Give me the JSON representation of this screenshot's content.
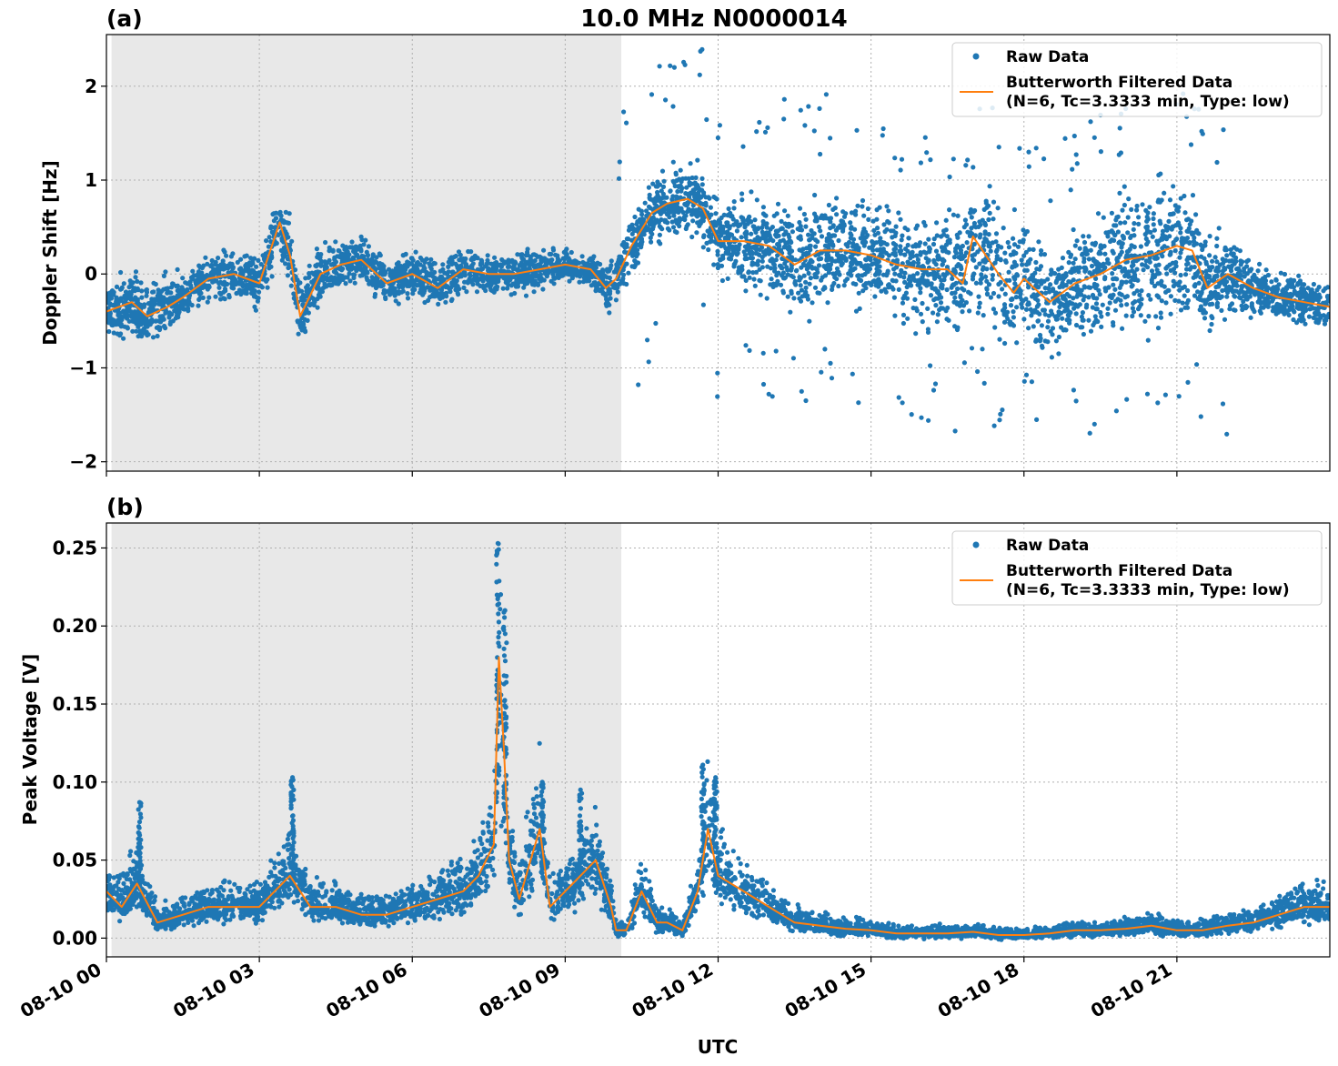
{
  "figure": {
    "title": "10.0 MHz N0000014",
    "xlabel": "UTC"
  },
  "colors": {
    "raw": "#1f77b4",
    "filtered": "#ff7f0e",
    "shade": "#e8e8e8",
    "grid": "#b0b0b0"
  },
  "legend": {
    "raw_label": "Raw Data",
    "filtered_label_line1": "Butterworth Filtered Data",
    "filtered_label_line2": "(N=6, Tc=3.3333 min, Type: low)"
  },
  "chart_data": [
    {
      "panel": "(a)",
      "type": "scatter",
      "ylabel": "Doppler Shift [Hz]",
      "xlim_hours": [
        0,
        24
      ],
      "ylim": [
        -2.1,
        2.55
      ],
      "yticks": [
        2,
        1,
        0,
        -1,
        -2
      ],
      "ytick_labels": [
        "2",
        "1",
        "0",
        "−1",
        "−2"
      ],
      "xtick_hours": [
        0,
        3,
        6,
        9,
        12,
        15,
        18,
        21
      ],
      "xtick_labels": [
        "08-10 00",
        "08-10 03",
        "08-10 06",
        "08-10 09",
        "08-10 12",
        "08-10 15",
        "08-10 18",
        "08-10 21"
      ],
      "shaded_interval_hours": [
        0.1,
        10.1
      ],
      "grid": true,
      "legend_position": "top-right",
      "series": [
        {
          "name": "Butterworth Filtered Data",
          "x": [
            0,
            0.5,
            0.8,
            1.2,
            1.5,
            2,
            2.5,
            3,
            3.4,
            3.6,
            3.8,
            4.2,
            4.6,
            5,
            5.5,
            6,
            6.5,
            7,
            7.5,
            8,
            8.5,
            9,
            9.5,
            9.8,
            10,
            10.3,
            10.7,
            11,
            11.4,
            11.7,
            12,
            12.5,
            13,
            13.5,
            14,
            14.5,
            15,
            15.5,
            16,
            16.5,
            16.8,
            17,
            17.5,
            17.8,
            18,
            18.5,
            19,
            19.5,
            20,
            20.5,
            21,
            21.3,
            21.6,
            22,
            22.5,
            23,
            23.5,
            24
          ],
          "y": [
            -0.4,
            -0.3,
            -0.45,
            -0.35,
            -0.25,
            -0.05,
            0.0,
            -0.1,
            0.55,
            0.2,
            -0.45,
            0.0,
            0.1,
            0.15,
            -0.1,
            0.0,
            -0.15,
            0.05,
            0.0,
            0.0,
            0.05,
            0.1,
            0.05,
            -0.15,
            -0.05,
            0.3,
            0.65,
            0.75,
            0.8,
            0.7,
            0.35,
            0.35,
            0.3,
            0.1,
            0.25,
            0.25,
            0.2,
            0.1,
            0.05,
            0.05,
            -0.1,
            0.4,
            0.0,
            -0.2,
            -0.05,
            -0.3,
            -0.1,
            0.0,
            0.15,
            0.2,
            0.3,
            0.25,
            -0.15,
            0.0,
            -0.15,
            -0.25,
            -0.3,
            -0.35
          ]
        },
        {
          "name": "Raw Data",
          "envelope_x": [
            0,
            0.5,
            0.8,
            1.2,
            1.5,
            2,
            2.5,
            3,
            3.4,
            3.6,
            3.8,
            4.2,
            4.6,
            5,
            5.5,
            6,
            6.5,
            7,
            7.5,
            8,
            8.5,
            9,
            9.5,
            9.8,
            10,
            10.3,
            10.7,
            11,
            11.4,
            11.7,
            12,
            12.5,
            13,
            13.5,
            14,
            14.5,
            15,
            15.5,
            16,
            16.5,
            16.8,
            17,
            17.5,
            17.8,
            18,
            18.5,
            19,
            19.5,
            20,
            20.5,
            21,
            21.3,
            21.6,
            22,
            22.5,
            23,
            23.5,
            24
          ],
          "spread": [
            0.35,
            0.4,
            0.45,
            0.4,
            0.3,
            0.3,
            0.3,
            0.35,
            0.45,
            0.4,
            0.45,
            0.35,
            0.35,
            0.3,
            0.3,
            0.3,
            0.3,
            0.3,
            0.25,
            0.25,
            0.25,
            0.2,
            0.2,
            0.3,
            0.3,
            0.35,
            0.4,
            0.45,
            0.45,
            0.45,
            0.45,
            0.55,
            0.6,
            0.65,
            0.7,
            0.65,
            0.65,
            0.7,
            0.75,
            0.85,
            0.9,
            0.9,
            0.8,
            0.9,
            0.8,
            0.7,
            0.7,
            0.8,
            0.9,
            0.95,
            0.9,
            0.75,
            0.6,
            0.55,
            0.4,
            0.3,
            0.3,
            0.3
          ]
        }
      ]
    },
    {
      "panel": "(b)",
      "type": "scatter",
      "ylabel": "Peak Voltage [V]",
      "xlim_hours": [
        0,
        24
      ],
      "ylim": [
        -0.012,
        0.266
      ],
      "yticks": [
        0.0,
        0.05,
        0.1,
        0.15,
        0.2,
        0.25
      ],
      "ytick_labels": [
        "0.00",
        "0.05",
        "0.10",
        "0.15",
        "0.20",
        "0.25"
      ],
      "xtick_hours": [
        0,
        3,
        6,
        9,
        12,
        15,
        18,
        21
      ],
      "xtick_labels": [
        "08-10 00",
        "08-10 03",
        "08-10 06",
        "08-10 09",
        "08-10 12",
        "08-10 15",
        "08-10 18",
        "08-10 21"
      ],
      "shaded_interval_hours": [
        0.1,
        10.1
      ],
      "grid": true,
      "legend_position": "top-right",
      "series": [
        {
          "name": "Butterworth Filtered Data",
          "x": [
            0,
            0.3,
            0.6,
            1,
            1.5,
            2,
            2.5,
            3,
            3.6,
            4,
            4.5,
            5,
            5.5,
            6,
            6.5,
            7,
            7.3,
            7.6,
            7.7,
            7.8,
            7.9,
            8.1,
            8.5,
            8.7,
            9,
            9.3,
            9.6,
            9.9,
            10,
            10.2,
            10.5,
            10.8,
            11,
            11.3,
            11.6,
            11.8,
            12,
            12.5,
            13,
            13.5,
            14,
            14.5,
            15,
            15.5,
            16,
            16.5,
            17,
            17.5,
            18,
            18.5,
            19,
            19.5,
            20,
            20.5,
            21,
            21.5,
            22,
            22.5,
            23,
            23.5,
            24
          ],
          "y": [
            0.03,
            0.02,
            0.035,
            0.01,
            0.015,
            0.02,
            0.02,
            0.02,
            0.04,
            0.02,
            0.02,
            0.015,
            0.015,
            0.02,
            0.025,
            0.03,
            0.04,
            0.06,
            0.18,
            0.12,
            0.05,
            0.025,
            0.07,
            0.02,
            0.03,
            0.04,
            0.05,
            0.02,
            0.005,
            0.005,
            0.03,
            0.01,
            0.01,
            0.005,
            0.03,
            0.07,
            0.04,
            0.03,
            0.02,
            0.01,
            0.008,
            0.006,
            0.005,
            0.003,
            0.003,
            0.003,
            0.004,
            0.002,
            0.002,
            0.003,
            0.005,
            0.005,
            0.006,
            0.008,
            0.005,
            0.005,
            0.008,
            0.01,
            0.015,
            0.02,
            0.02
          ]
        },
        {
          "name": "Raw Data",
          "peaks": [
            {
              "x": 0.65,
              "y": 0.087
            },
            {
              "x": 3.65,
              "y": 0.103
            },
            {
              "x": 7.68,
              "y": 0.253
            },
            {
              "x": 7.82,
              "y": 0.21
            },
            {
              "x": 8.55,
              "y": 0.1
            },
            {
              "x": 9.3,
              "y": 0.095
            },
            {
              "x": 11.7,
              "y": 0.111
            },
            {
              "x": 11.95,
              "y": 0.103
            }
          ]
        }
      ]
    }
  ]
}
